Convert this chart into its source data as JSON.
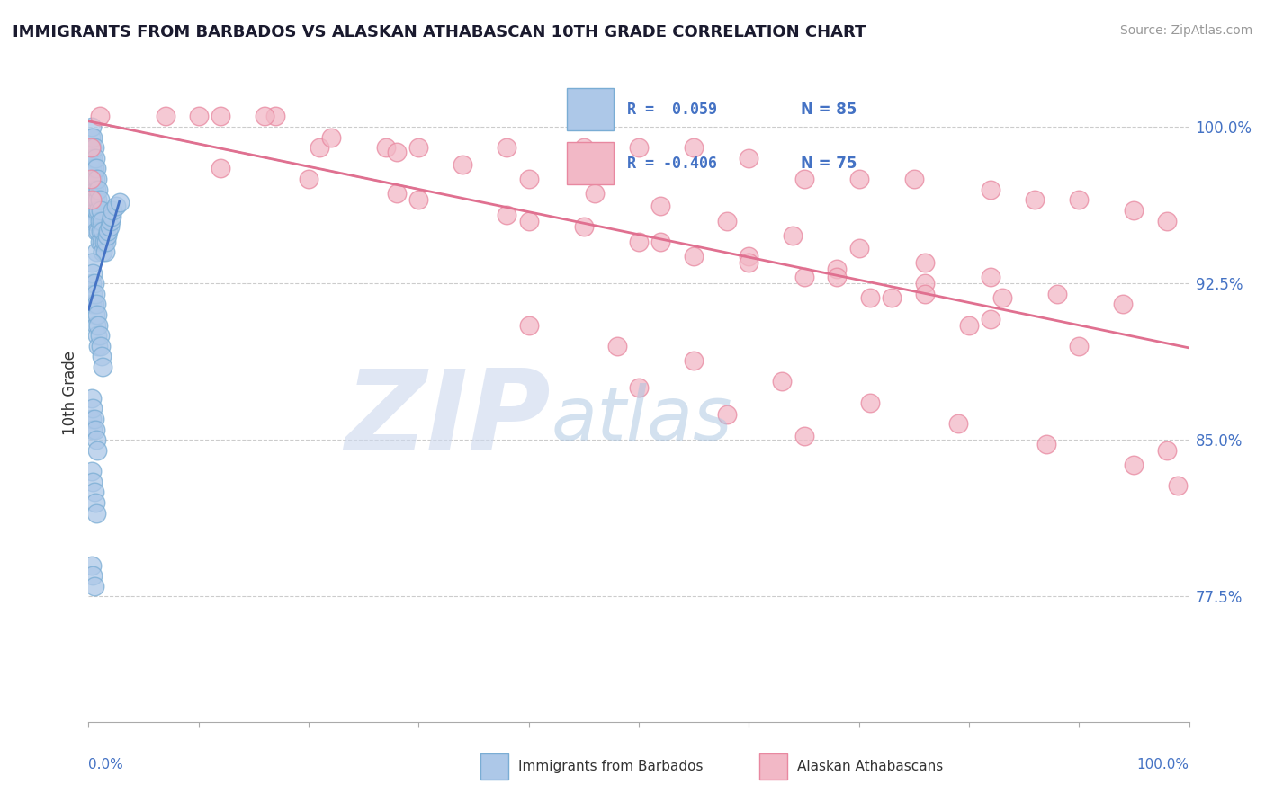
{
  "title": "IMMIGRANTS FROM BARBADOS VS ALASKAN ATHABASCAN 10TH GRADE CORRELATION CHART",
  "source": "Source: ZipAtlas.com",
  "ylabel": "10th Grade",
  "yticks": [
    0.775,
    0.85,
    0.925,
    1.0
  ],
  "ytick_labels": [
    "77.5%",
    "85.0%",
    "92.5%",
    "100.0%"
  ],
  "xlim": [
    0.0,
    1.0
  ],
  "ylim": [
    0.715,
    1.03
  ],
  "blue_color": "#adc8e8",
  "blue_edge": "#7aadd4",
  "pink_color": "#f2b8c6",
  "pink_edge": "#e888a0",
  "blue_line_color": "#4472C4",
  "pink_line_color": "#e07090",
  "dashed_line_color": "#b8b8d0",
  "watermark_zip_color": "#c8d8ee",
  "watermark_atlas_color": "#a8c4e0",
  "tick_color": "#4472C4",
  "grid_color": "#cccccc",
  "blue_x": [
    0.002,
    0.002,
    0.003,
    0.003,
    0.003,
    0.003,
    0.003,
    0.004,
    0.004,
    0.004,
    0.004,
    0.004,
    0.005,
    0.005,
    0.005,
    0.005,
    0.006,
    0.006,
    0.006,
    0.006,
    0.007,
    0.007,
    0.007,
    0.007,
    0.007,
    0.008,
    0.008,
    0.009,
    0.009,
    0.009,
    0.01,
    0.01,
    0.01,
    0.011,
    0.011,
    0.012,
    0.012,
    0.013,
    0.013,
    0.014,
    0.015,
    0.016,
    0.017,
    0.018,
    0.019,
    0.02,
    0.021,
    0.022,
    0.025,
    0.028,
    0.003,
    0.003,
    0.003,
    0.004,
    0.004,
    0.005,
    0.005,
    0.006,
    0.006,
    0.007,
    0.007,
    0.008,
    0.008,
    0.009,
    0.009,
    0.01,
    0.011,
    0.012,
    0.013,
    0.003,
    0.003,
    0.004,
    0.004,
    0.005,
    0.006,
    0.007,
    0.008,
    0.003,
    0.004,
    0.005,
    0.006,
    0.007,
    0.003,
    0.004,
    0.005
  ],
  "blue_y": [
    0.995,
    0.985,
    1.0,
    0.99,
    0.98,
    0.97,
    0.96,
    0.995,
    0.985,
    0.975,
    0.965,
    0.955,
    0.99,
    0.98,
    0.97,
    0.96,
    0.985,
    0.975,
    0.965,
    0.955,
    0.98,
    0.97,
    0.96,
    0.95,
    0.94,
    0.975,
    0.965,
    0.97,
    0.96,
    0.95,
    0.965,
    0.955,
    0.945,
    0.96,
    0.95,
    0.955,
    0.945,
    0.95,
    0.94,
    0.945,
    0.94,
    0.945,
    0.948,
    0.95,
    0.952,
    0.955,
    0.957,
    0.96,
    0.962,
    0.964,
    0.935,
    0.925,
    0.915,
    0.93,
    0.92,
    0.925,
    0.915,
    0.92,
    0.91,
    0.915,
    0.905,
    0.91,
    0.9,
    0.905,
    0.895,
    0.9,
    0.895,
    0.89,
    0.885,
    0.87,
    0.86,
    0.865,
    0.855,
    0.86,
    0.855,
    0.85,
    0.845,
    0.835,
    0.83,
    0.825,
    0.82,
    0.815,
    0.79,
    0.785,
    0.78
  ],
  "pink_x": [
    0.01,
    0.07,
    0.12,
    0.17,
    0.21,
    0.27,
    0.3,
    0.38,
    0.45,
    0.5,
    0.55,
    0.6,
    0.65,
    0.7,
    0.75,
    0.82,
    0.86,
    0.9,
    0.95,
    0.98,
    0.1,
    0.16,
    0.22,
    0.28,
    0.34,
    0.4,
    0.46,
    0.52,
    0.58,
    0.64,
    0.7,
    0.76,
    0.82,
    0.88,
    0.94,
    0.12,
    0.2,
    0.28,
    0.38,
    0.45,
    0.52,
    0.6,
    0.68,
    0.76,
    0.83,
    0.3,
    0.4,
    0.5,
    0.6,
    0.68,
    0.76,
    0.55,
    0.65,
    0.73,
    0.82,
    0.71,
    0.8,
    0.9,
    0.98,
    0.002,
    0.002,
    0.003,
    0.4,
    0.48,
    0.55,
    0.63,
    0.71,
    0.79,
    0.87,
    0.95,
    0.99,
    0.5,
    0.58,
    0.65
  ],
  "pink_y": [
    1.005,
    1.005,
    1.005,
    1.005,
    0.99,
    0.99,
    0.99,
    0.99,
    0.99,
    0.99,
    0.99,
    0.985,
    0.975,
    0.975,
    0.975,
    0.97,
    0.965,
    0.965,
    0.96,
    0.955,
    1.005,
    1.005,
    0.995,
    0.988,
    0.982,
    0.975,
    0.968,
    0.962,
    0.955,
    0.948,
    0.942,
    0.935,
    0.928,
    0.92,
    0.915,
    0.98,
    0.975,
    0.968,
    0.958,
    0.952,
    0.945,
    0.938,
    0.932,
    0.925,
    0.918,
    0.965,
    0.955,
    0.945,
    0.935,
    0.928,
    0.92,
    0.938,
    0.928,
    0.918,
    0.908,
    0.918,
    0.905,
    0.895,
    0.845,
    0.99,
    0.975,
    0.965,
    0.905,
    0.895,
    0.888,
    0.878,
    0.868,
    0.858,
    0.848,
    0.838,
    0.828,
    0.875,
    0.862,
    0.852
  ]
}
